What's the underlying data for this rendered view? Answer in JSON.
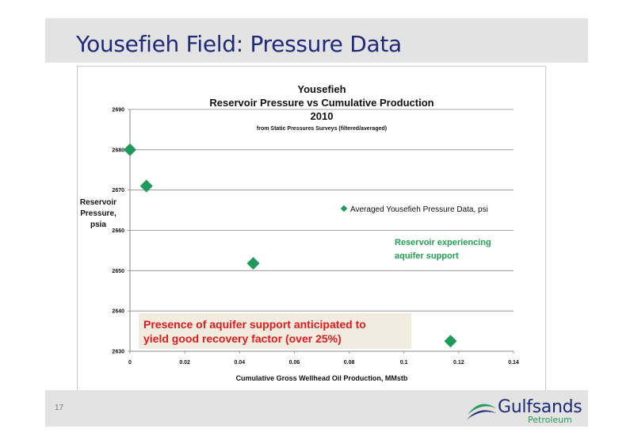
{
  "slide": {
    "title": "Yousefieh Field: Pressure Data",
    "page_number": "17"
  },
  "logo": {
    "name": "Gulfsands",
    "sub": "Petroleum",
    "colors": {
      "navy": "#1f2a7a",
      "green": "#2a9a5a"
    }
  },
  "chart_data": {
    "type": "scatter",
    "title_lines": [
      "Yousefieh",
      "Reservoir Pressure vs Cumulative Production",
      "2010"
    ],
    "subtitle": "from Static Pressures Surveys (filtered/averaged)",
    "xlabel": "Cumulative Gross Wellhead Oil Production, MMstb",
    "ylabel_lines": [
      "Reservoir",
      "Pressure,",
      "psia"
    ],
    "xlim": [
      0,
      0.14
    ],
    "ylim": [
      2630,
      2690
    ],
    "x_ticks": [
      "0",
      "0.02",
      "0.04",
      "0.06",
      "0.08",
      "0.1",
      "0.12",
      "0.14"
    ],
    "y_ticks": [
      "2630",
      "2640",
      "2650",
      "2660",
      "2670",
      "2680",
      "2690"
    ],
    "grid": "horizontal",
    "legend_placement": "right",
    "series": [
      {
        "name": "Averaged Yousefieh Pressure Data, psi",
        "color": "#1f9a5a",
        "marker": "diamond",
        "points": [
          {
            "x": 0.0,
            "y": 2680
          },
          {
            "x": 0.006,
            "y": 2671
          },
          {
            "x": 0.045,
            "y": 2651.8
          },
          {
            "x": 0.117,
            "y": 2632.5
          }
        ]
      }
    ],
    "annotations": {
      "aquifer_note_lines": [
        "Reservoir experiencing",
        "aquifer support"
      ],
      "aquifer_note_color": "#22a050",
      "recovery_note_lines": [
        "Presence of aquifer support anticipated to",
        "yield good recovery factor (over 25%)"
      ],
      "recovery_note_color": "#e01b1b",
      "recovery_note_bg": "#f2ebe0"
    }
  }
}
